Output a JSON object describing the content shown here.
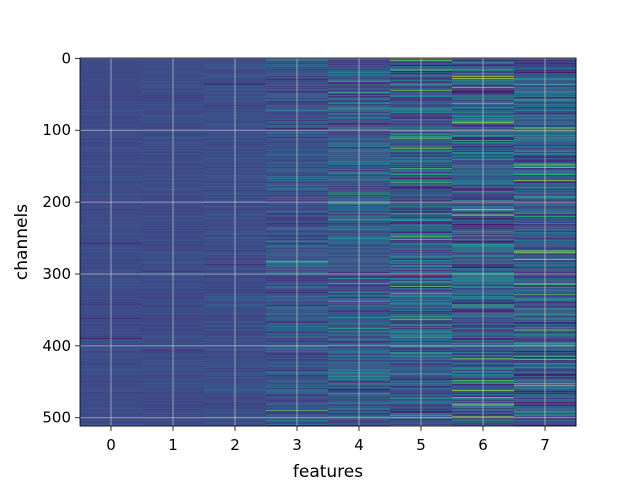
{
  "chart_data": {
    "type": "heatmap",
    "title": "",
    "xlabel": "features",
    "ylabel": "channels",
    "x_categories": [
      "0",
      "1",
      "2",
      "3",
      "4",
      "5",
      "6",
      "7"
    ],
    "xticks": [
      0,
      1,
      2,
      3,
      4,
      5,
      6,
      7
    ],
    "yticks": [
      0,
      100,
      200,
      300,
      400,
      500
    ],
    "xlim": [
      -0.5,
      7.5
    ],
    "ylim": [
      511.5,
      -0.5
    ],
    "rows": 512,
    "columns": 8,
    "colormap": "viridis",
    "grid": true,
    "legend": "none",
    "column_variation": [
      0.1,
      0.12,
      0.16,
      0.35,
      0.45,
      0.55,
      0.6,
      0.55
    ],
    "notable_bands": [
      {
        "feature": 3,
        "channel": 283,
        "level": 0.85
      },
      {
        "feature": 3,
        "channel": 490,
        "level": 0.8
      },
      {
        "feature": 4,
        "channel": 47,
        "level": 0.7
      },
      {
        "feature": 4,
        "channel": 338,
        "level": 0.75
      },
      {
        "feature": 5,
        "channel": 10,
        "level": 0.0
      },
      {
        "feature": 5,
        "channel": 125,
        "level": 0.9
      },
      {
        "feature": 5,
        "channel": 410,
        "level": 0.75
      },
      {
        "feature": 6,
        "channel": 25,
        "level": 0.95
      },
      {
        "feature": 6,
        "channel": 210,
        "level": 0.95
      },
      {
        "feature": 6,
        "channel": 298,
        "level": 0.6
      },
      {
        "feature": 6,
        "channel": 462,
        "level": 0.9
      },
      {
        "feature": 7,
        "channel": 58,
        "level": 0.7
      },
      {
        "feature": 7,
        "channel": 280,
        "level": 0.9
      },
      {
        "feature": 7,
        "channel": 378,
        "level": 0.8
      },
      {
        "feature": 7,
        "channel": 455,
        "level": 0.85
      }
    ]
  }
}
